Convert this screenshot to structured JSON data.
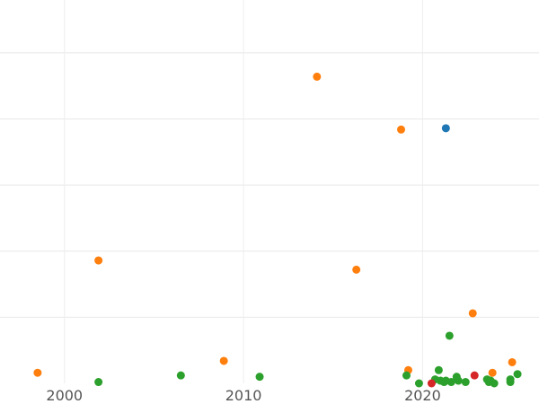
{
  "chart_data": {
    "type": "scatter",
    "title": "",
    "xlabel": "",
    "ylabel": "",
    "xlim": [
      1996.4,
      2026.5
    ],
    "ylim": [
      0,
      29
    ],
    "grid": true,
    "y_ticks": [
      5,
      10,
      15,
      20,
      25
    ],
    "x_ticks": [
      2000,
      2010,
      2020
    ],
    "x_tick_labels": [
      "2000",
      "2010",
      "2020"
    ],
    "series": [
      {
        "color": "#1f77b4",
        "points": [
          {
            "x": 2021.3,
            "y": 19.3
          }
        ]
      },
      {
        "color": "#ff7f0e",
        "points": [
          {
            "x": 1998.5,
            "y": 0.8
          },
          {
            "x": 2001.9,
            "y": 9.3
          },
          {
            "x": 2008.9,
            "y": 1.7
          },
          {
            "x": 2014.1,
            "y": 23.2
          },
          {
            "x": 2016.3,
            "y": 8.6
          },
          {
            "x": 2018.8,
            "y": 19.2
          },
          {
            "x": 2019.2,
            "y": 1.0
          },
          {
            "x": 2022.8,
            "y": 5.3
          },
          {
            "x": 2023.9,
            "y": 0.8
          },
          {
            "x": 2025.0,
            "y": 1.6
          }
        ]
      },
      {
        "color": "#2ca02c",
        "points": [
          {
            "x": 2001.9,
            "y": 0.1
          },
          {
            "x": 2006.5,
            "y": 0.6
          },
          {
            "x": 2010.9,
            "y": 0.5
          },
          {
            "x": 2019.1,
            "y": 0.6
          },
          {
            "x": 2019.8,
            "y": 0.0
          },
          {
            "x": 2020.7,
            "y": 0.3
          },
          {
            "x": 2020.9,
            "y": 1.0
          },
          {
            "x": 2021.0,
            "y": 0.2
          },
          {
            "x": 2021.2,
            "y": 0.1
          },
          {
            "x": 2021.3,
            "y": 0.2
          },
          {
            "x": 2021.5,
            "y": 3.6
          },
          {
            "x": 2021.6,
            "y": 0.1
          },
          {
            "x": 2021.9,
            "y": 0.5
          },
          {
            "x": 2022.0,
            "y": 0.2
          },
          {
            "x": 2022.4,
            "y": 0.1
          },
          {
            "x": 2023.6,
            "y": 0.3
          },
          {
            "x": 2023.7,
            "y": 0.1
          },
          {
            "x": 2023.8,
            "y": 0.2
          },
          {
            "x": 2024.0,
            "y": 0.0
          },
          {
            "x": 2024.9,
            "y": 0.3
          },
          {
            "x": 2024.9,
            "y": 0.1
          },
          {
            "x": 2025.3,
            "y": 0.7
          }
        ]
      },
      {
        "color": "#d62728",
        "points": [
          {
            "x": 2020.5,
            "y": 0.0
          },
          {
            "x": 2022.9,
            "y": 0.6
          }
        ]
      }
    ]
  }
}
